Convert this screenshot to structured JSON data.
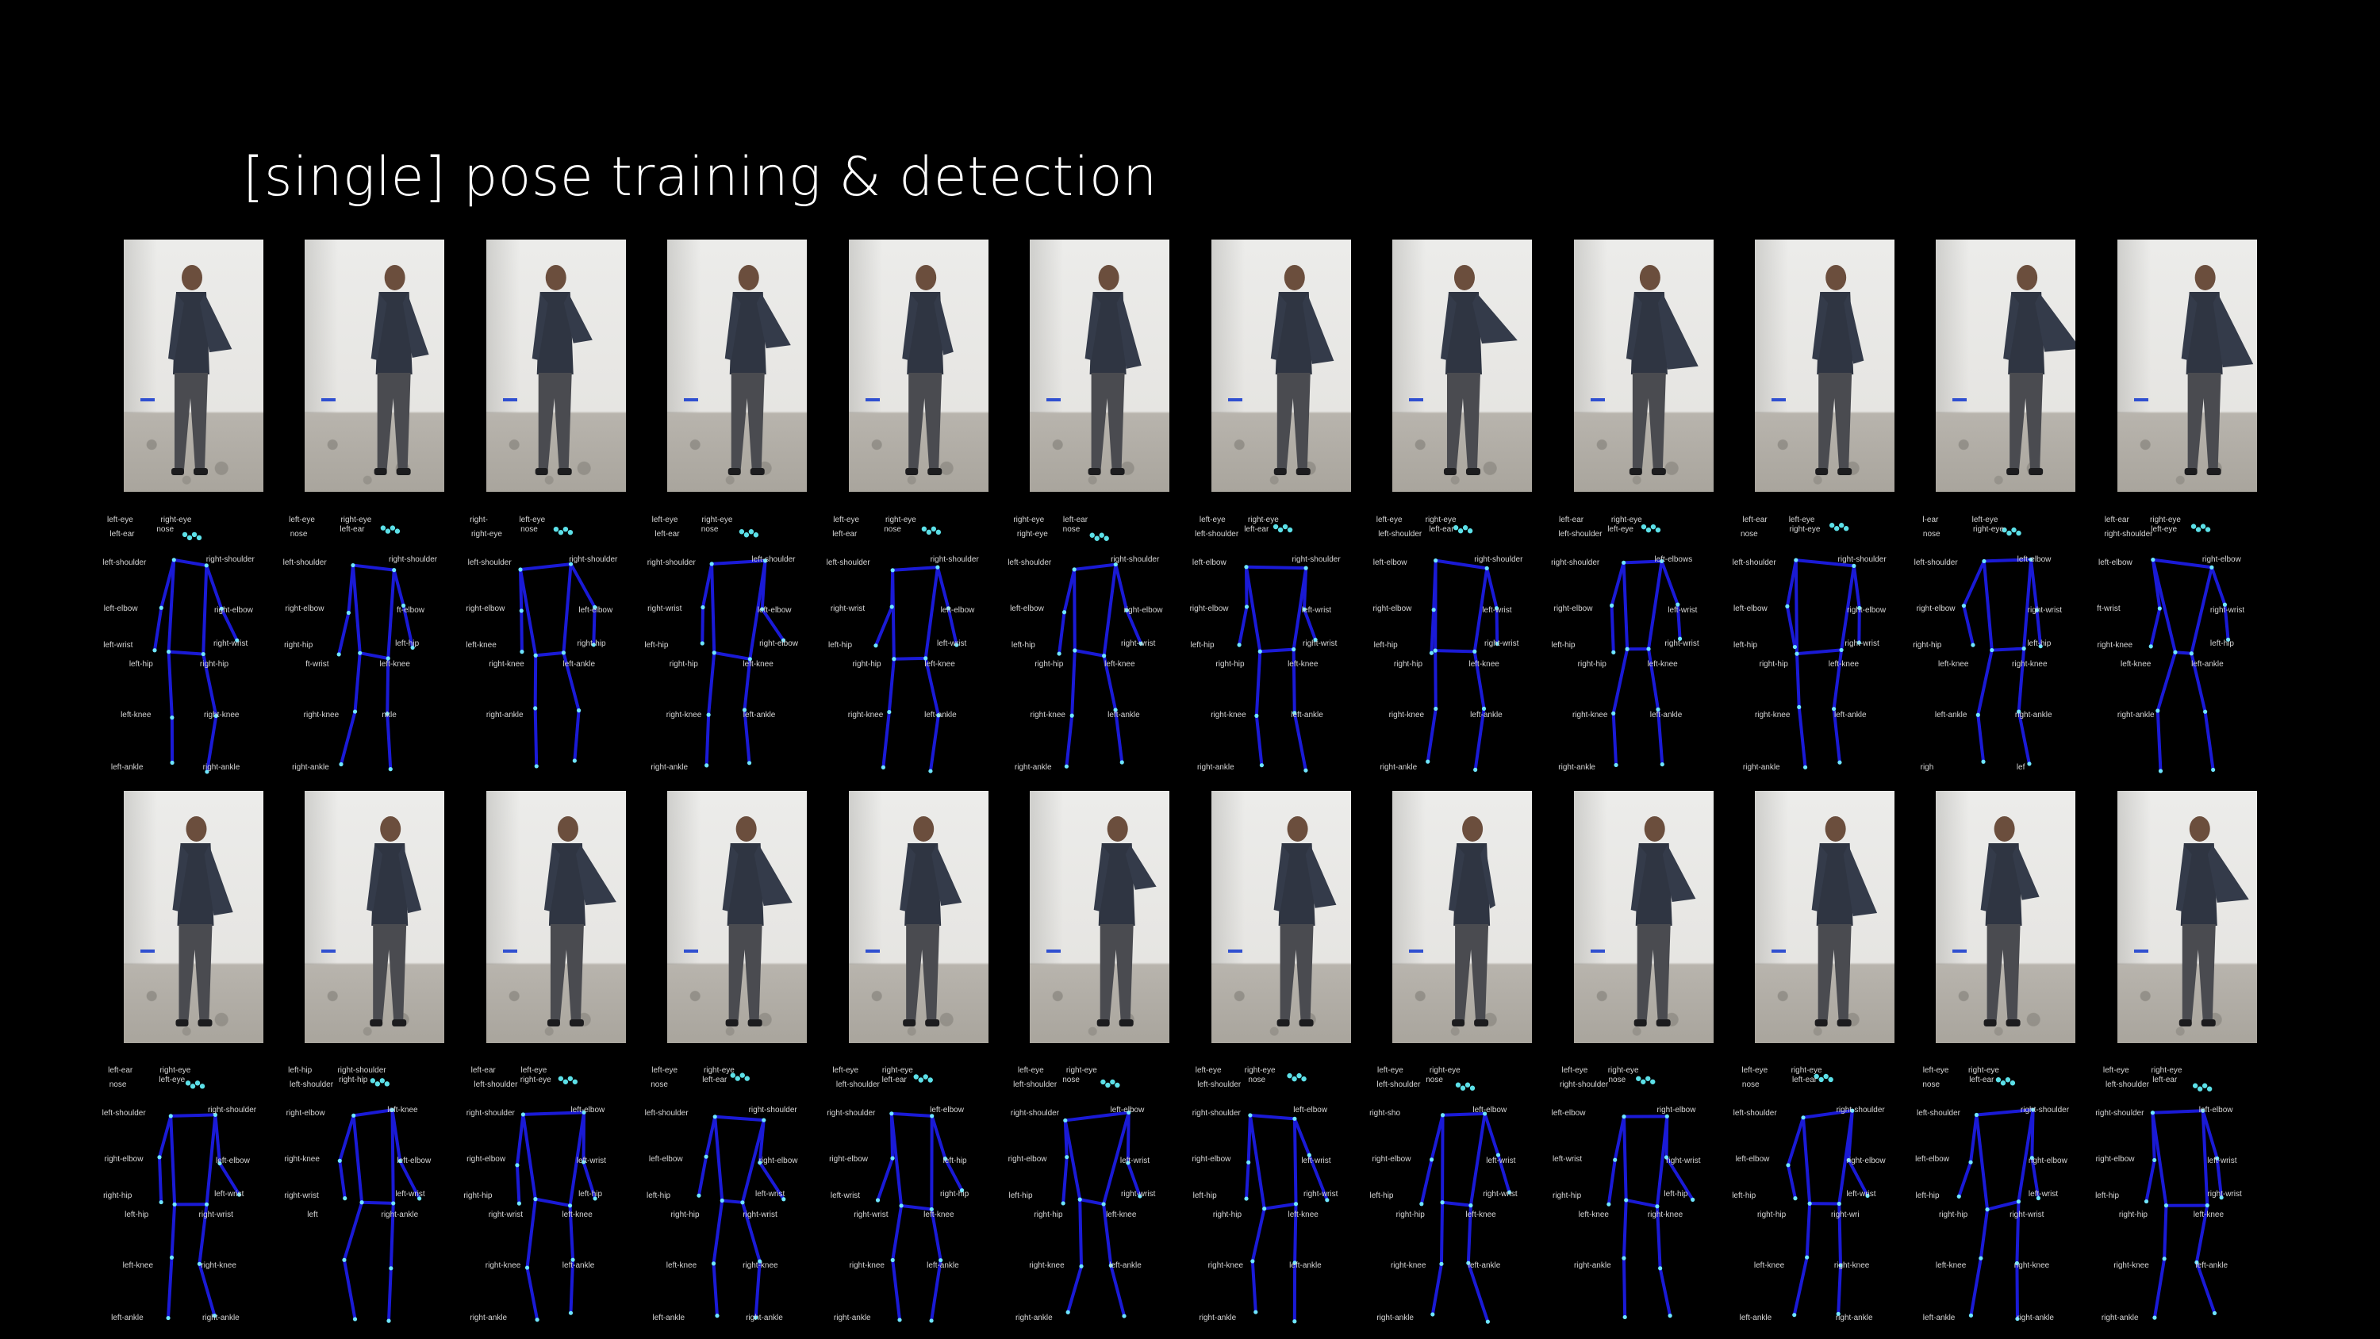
{
  "slide": {
    "title": "[single] pose training & detection"
  },
  "colors": {
    "background": "#000000",
    "skeleton_line": "#1a1ad6",
    "joint": "#6fe6ff",
    "label": "#d6d6d6"
  },
  "rows": [
    {
      "name": "row-1",
      "poses": [
        {
          "labels": [
            "left-eye",
            "right-eye",
            "nose",
            "left-ear",
            "left-shoulder",
            "right-shoulder",
            "left-elbow",
            "right-elbow",
            "right-wrist",
            "left-wrist",
            "left-hip",
            "right-hip",
            "left-knee",
            "right-knee",
            "left-ankle",
            "right-ankle"
          ]
        },
        {
          "labels": [
            "left-eye",
            "right-eye",
            "left-ear",
            "nose",
            "left-shoulder",
            "right-shoulder",
            "right-elbow",
            "ft-elbow",
            "left-hip",
            "right-hip",
            "ft-wrist",
            "left-knee",
            "right-knee",
            "nkle",
            "right-ankle"
          ]
        },
        {
          "labels": [
            "right-",
            "left-eye",
            "nose",
            "right-eye",
            "left-shoulder",
            "right-shoulder",
            "right-elbow",
            "left-elbow",
            "right-hip",
            "left-knee",
            "right-knee",
            "left-ankle",
            "right-ankle"
          ]
        },
        {
          "labels": [
            "left-eye",
            "right-eye",
            "nose",
            "left-ear",
            "right-shoulder",
            "left-shoulder",
            "right-wrist",
            "left-elbow",
            "right-elbow",
            "left-hip",
            "right-hip",
            "left-knee",
            "right-knee",
            "left-ankle",
            "right-ankle"
          ]
        },
        {
          "labels": [
            "left-eye",
            "right-eye",
            "nose",
            "left-ear",
            "left-shoulder",
            "right-shoulder",
            "right-wrist",
            "left-elbow",
            "left-wrist",
            "left-hip",
            "right-hip",
            "left-knee",
            "right-knee",
            "left-ankle"
          ]
        },
        {
          "labels": [
            "right-eye",
            "left-ear",
            "nose",
            "right-eye",
            "left-shoulder",
            "right-shoulder",
            "left-elbow",
            "right-elbow",
            "right-wrist",
            "left-hip",
            "right-hip",
            "left-knee",
            "right-knee",
            "left-ankle",
            "right-ankle"
          ]
        },
        {
          "labels": [
            "left-eye",
            "right-eye",
            "left-ear",
            "left-shoulder",
            "left-elbow",
            "right-shoulder",
            "right-elbow",
            "left-wrist",
            "right-wrist",
            "left-hip",
            "right-hip",
            "left-knee",
            "right-knee",
            "left-ankle",
            "right-ankle"
          ]
        },
        {
          "labels": [
            "left-eye",
            "right-eye",
            "left-ear",
            "left-shoulder",
            "left-elbow",
            "right-shoulder",
            "right-elbow",
            "left-wrist",
            "right-wrist",
            "left-hip",
            "right-hip",
            "left-knee",
            "right-knee",
            "left-ankle",
            "right-ankle"
          ]
        },
        {
          "labels": [
            "left-ear",
            "right-eye",
            "left-eye",
            "left-shoulder",
            "right-shoulder",
            "left-elbows",
            "right-elbow",
            "left-wrist",
            "right-wrist",
            "left-hip",
            "right-hip",
            "left-knee",
            "right-knee",
            "left-ankle",
            "right-ankle"
          ]
        },
        {
          "labels": [
            "left-ear",
            "left-eye",
            "right-eye",
            "nose",
            "left-shoulder",
            "right-shoulder",
            "left-elbow",
            "right-elbow",
            "right-wrist",
            "left-hip",
            "right-hip",
            "left-knee",
            "right-knee",
            "left-ankle",
            "right-ankle"
          ]
        },
        {
          "labels": [
            "l-ear",
            "left-eye",
            "right-eye",
            "nose",
            "left-shoulder",
            "left-elbow",
            "right-elbow",
            "right-wrist",
            "left-hip",
            "right-hip",
            "left-knee",
            "right-knee",
            "left-ankle",
            "right-ankle",
            "righ",
            "lef"
          ]
        },
        {
          "labels": [
            "left-ear",
            "right-eye",
            "left-eye",
            "right-shoulder",
            "left-elbow",
            "right-elbow",
            "ft-wrist",
            "right-wrist",
            "left-hip",
            "right-knee",
            "left-knee",
            "left-ankle",
            "right-ankle"
          ]
        }
      ]
    },
    {
      "name": "row-2",
      "poses": [
        {
          "labels": [
            "left-ear",
            "right-eye",
            "left-eye",
            "nose",
            "left-shoulder",
            "right-shoulder",
            "right-elbow",
            "left-elbow",
            "left-wrist",
            "right-hip",
            "left-hip",
            "right-wrist",
            "left-knee",
            "right-knee",
            "left-ankle",
            "right-ankle"
          ]
        },
        {
          "labels": [
            "left-hip",
            "right-shoulder",
            "right-hip",
            "left-shoulder",
            "right-elbow",
            "left-knee",
            "right-knee",
            "left-elbow",
            "left-wrist",
            "right-wrist",
            "left",
            "right-ankle"
          ]
        },
        {
          "labels": [
            "left-ear",
            "left-eye",
            "right-eye",
            "left-shoulder",
            "right-shoulder",
            "left-elbow",
            "right-elbow",
            "left-wrist",
            "left-hip",
            "right-hip",
            "right-wrist",
            "left-knee",
            "right-knee",
            "left-ankle",
            "right-ankle"
          ]
        },
        {
          "labels": [
            "left-eye",
            "right-eye",
            "left-ear",
            "nose",
            "left-shoulder",
            "right-shoulder",
            "left-elbow",
            "right-elbow",
            "left-wrist",
            "left-hip",
            "right-hip",
            "right-wrist",
            "left-knee",
            "right-knee",
            "left-ankle",
            "right-ankle"
          ]
        },
        {
          "labels": [
            "left-eye",
            "right-eye",
            "left-ear",
            "left-shoulder",
            "right-shoulder",
            "left-elbow",
            "right-elbow",
            "left-hip",
            "right-hip",
            "left-wrist",
            "right-wrist",
            "left-knee",
            "right-knee",
            "left-ankle",
            "right-ankle"
          ]
        },
        {
          "labels": [
            "left-eye",
            "right-eye",
            "nose",
            "left-shoulder",
            "right-shoulder",
            "left-elbow",
            "right-elbow",
            "left-wrist",
            "right-wrist",
            "left-hip",
            "right-hip",
            "left-knee",
            "right-knee",
            "left-ankle",
            "right-ankle"
          ]
        },
        {
          "labels": [
            "left-eye",
            "right-eye",
            "nose",
            "left-shoulder",
            "right-shoulder",
            "left-elbow",
            "right-elbow",
            "left-wrist",
            "right-wrist",
            "left-hip",
            "right-hip",
            "left-knee",
            "right-knee",
            "left-ankle",
            "right-ankle"
          ]
        },
        {
          "labels": [
            "left-eye",
            "right-eye",
            "nose",
            "left-shoulder",
            "right-sho",
            "left-elbow",
            "right-elbow",
            "left-wrist",
            "right-wrist",
            "left-hip",
            "right-hip",
            "left-knee",
            "right-knee",
            "left-ankle",
            "right-ankle"
          ]
        },
        {
          "labels": [
            "left-eye",
            "right-eye",
            "nose",
            "right-shoulder",
            "left-elbow",
            "right-elbow",
            "left-wrist",
            "right-wrist",
            "left-hip",
            "right-hip",
            "left-knee",
            "right-knee",
            "right-ankle"
          ]
        },
        {
          "labels": [
            "left-eye",
            "right-eye",
            "left-ear",
            "nose",
            "left-shoulder",
            "right-shoulder",
            "left-elbow",
            "right-elbow",
            "left-wrist",
            "left-hip",
            "right-hip",
            "right-wri",
            "left-knee",
            "right-knee",
            "left-ankle",
            "right-ankle"
          ]
        },
        {
          "labels": [
            "left-eye",
            "right-eye",
            "left-ear",
            "nose",
            "left-shoulder",
            "right-shoulder",
            "left-elbow",
            "right-elbow",
            "left-wrist",
            "left-hip",
            "right-hip",
            "right-wrist",
            "left-knee",
            "right-knee",
            "left-ankle",
            "right-ankle"
          ]
        },
        {
          "labels": [
            "left-eye",
            "right-eye",
            "left-ear",
            "left-shoulder",
            "right-shoulder",
            "left-elbow",
            "right-elbow",
            "left-wrist",
            "right-wrist",
            "left-hip",
            "right-hip",
            "left-knee",
            "right-knee",
            "left-ankle",
            "right-ankle"
          ]
        }
      ]
    }
  ]
}
